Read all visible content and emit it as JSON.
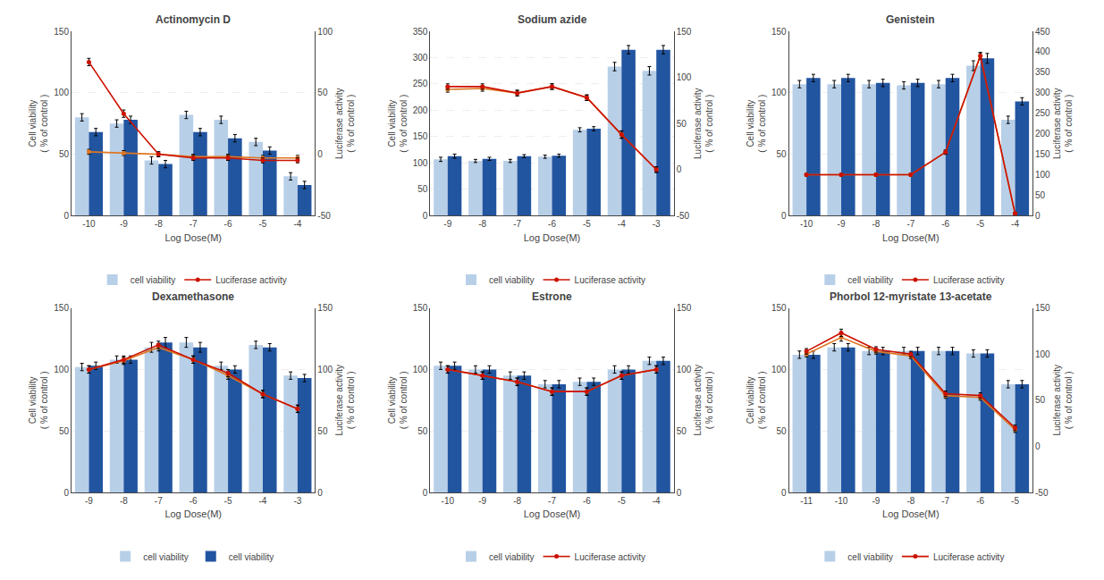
{
  "chart_data": [
    {
      "type": "bar",
      "title": "Actinomycin D",
      "categories": [
        "-10",
        "-9",
        "-8",
        "-7",
        "-6",
        "-5",
        "-4"
      ],
      "xlabel": "Log Dose(M)",
      "ylabel": "Cell viability\n( % of control )",
      "y2label": "Luciferase activity\n( % of control )",
      "ylim": [
        0,
        150
      ],
      "yticks": [
        0,
        50,
        100,
        150
      ],
      "y2lim": [
        -50,
        100
      ],
      "y2ticks": [
        -50,
        0,
        50,
        100
      ],
      "grid": true,
      "legend": "bottom",
      "series": [
        {
          "name": "cell viability",
          "type": "bar",
          "color": "#b8cfe8",
          "values": [
            80,
            75,
            45,
            82,
            78,
            60,
            32
          ],
          "errors": [
            3,
            3,
            3,
            3,
            3,
            3,
            3
          ]
        },
        {
          "type": "bar",
          "color": "#2255a0",
          "values": [
            68,
            78,
            42,
            68,
            63,
            53,
            25
          ],
          "errors": [
            3,
            3,
            3,
            3,
            3,
            3,
            3
          ]
        },
        {
          "type": "line",
          "axis": "y2",
          "color": "#dd7722",
          "marker": "circle",
          "line_style": "solid",
          "values": [
            2,
            1,
            0,
            -2,
            -2,
            -3,
            -3
          ],
          "errors": [
            2,
            2,
            2,
            2,
            2,
            2,
            2
          ]
        },
        {
          "name": "Luciferase activity",
          "type": "line",
          "axis": "y2",
          "color": "#cc1100",
          "marker": "circle",
          "line_style": "solid",
          "values": [
            75,
            33,
            0,
            -3,
            -3,
            -5,
            -5
          ],
          "errors": [
            3,
            3,
            2,
            2,
            2,
            2,
            2
          ]
        }
      ]
    },
    {
      "type": "bar",
      "title": "Sodium azide",
      "categories": [
        "-9",
        "-8",
        "-7",
        "-6",
        "-5",
        "-4",
        "-3"
      ],
      "xlabel": "Log Dose(M)",
      "ylabel": "Cell viability\n( % of control )",
      "y2label": "Luciferase activity\n( % of control )",
      "ylim": [
        0,
        350
      ],
      "yticks": [
        0,
        50,
        100,
        150,
        200,
        250,
        300,
        350
      ],
      "y2lim": [
        -50,
        150
      ],
      "y2ticks": [
        -50,
        0,
        50,
        100,
        150
      ],
      "grid": true,
      "legend": "bottom",
      "series": [
        {
          "name": "cell viability",
          "type": "bar",
          "color": "#b8cfe8",
          "values": [
            107,
            104,
            104,
            112,
            163,
            283,
            275
          ],
          "errors": [
            4,
            3,
            3,
            3,
            4,
            8,
            8
          ]
        },
        {
          "type": "bar",
          "color": "#2255a0",
          "values": [
            113,
            108,
            113,
            114,
            165,
            315,
            315
          ],
          "errors": [
            4,
            3,
            3,
            3,
            4,
            8,
            8
          ]
        },
        {
          "type": "line",
          "axis": "y2",
          "color": "#dd7722",
          "marker": "circle",
          "line_style": "solid",
          "values": [
            87,
            88,
            83,
            90,
            78,
            38,
            0
          ],
          "errors": [
            3,
            3,
            3,
            3,
            3,
            4,
            3
          ]
        },
        {
          "name": "Luciferase activity",
          "type": "line",
          "axis": "y2",
          "color": "#cc1100",
          "marker": "circle",
          "line_style": "solid",
          "values": [
            90,
            90,
            83,
            90,
            78,
            38,
            0
          ],
          "errors": [
            3,
            3,
            3,
            3,
            3,
            4,
            3
          ]
        }
      ]
    },
    {
      "type": "bar",
      "title": "Genistein",
      "categories": [
        "-10",
        "-9",
        "-8",
        "-7",
        "-6",
        "-5",
        "-4"
      ],
      "xlabel": "Log Dose(M)",
      "ylabel": "Cell viability\n( % of control )",
      "y2label": "Luciferase activity\n( % of control )",
      "ylim": [
        0,
        150
      ],
      "yticks": [
        0,
        50,
        100,
        150
      ],
      "y2lim": [
        0,
        450
      ],
      "y2ticks": [
        0,
        50,
        100,
        150,
        200,
        250,
        300,
        350,
        400,
        450
      ],
      "grid": true,
      "legend": "bottom",
      "series": [
        {
          "name": "cell viability",
          "type": "bar",
          "color": "#b8cfe8",
          "values": [
            107,
            107,
            107,
            106,
            107,
            122,
            78
          ],
          "errors": [
            3,
            3,
            3,
            3,
            3,
            4,
            3
          ]
        },
        {
          "type": "bar",
          "color": "#2255a0",
          "values": [
            112,
            112,
            108,
            108,
            112,
            128,
            93
          ],
          "errors": [
            3,
            3,
            3,
            3,
            3,
            4,
            3
          ]
        },
        {
          "type": "line",
          "axis": "y2",
          "color": "#dd7722",
          "marker": "circle",
          "line_style": "solid",
          "values": [
            100,
            100,
            100,
            100,
            155,
            390,
            5
          ],
          "errors": [
            3,
            3,
            3,
            3,
            5,
            8,
            3
          ]
        },
        {
          "name": "Luciferase activity",
          "type": "line",
          "axis": "y2",
          "color": "#cc1100",
          "marker": "circle",
          "line_style": "solid",
          "values": [
            100,
            100,
            100,
            100,
            155,
            390,
            5
          ],
          "errors": [
            3,
            3,
            3,
            3,
            5,
            8,
            3
          ]
        }
      ]
    },
    {
      "type": "bar",
      "title": "Dexamethasone",
      "categories": [
        "-9",
        "-8",
        "-7",
        "-6",
        "-5",
        "-4",
        "-3"
      ],
      "xlabel": "Log Dose(M)",
      "ylabel": "Cell viability\n( % of control )",
      "y2label": "Luciferase activity\n( % of control )",
      "ylim": [
        0,
        150
      ],
      "yticks": [
        0,
        50,
        100,
        150
      ],
      "y2lim": [
        0,
        150
      ],
      "y2ticks": [
        0,
        50,
        100,
        150
      ],
      "grid": true,
      "legend": "bottom",
      "series": [
        {
          "name": "cell viability",
          "type": "bar",
          "color": "#b8cfe8",
          "values": [
            102,
            108,
            118,
            122,
            103,
            120,
            95
          ],
          "errors": [
            3,
            3,
            4,
            4,
            3,
            3,
            3
          ]
        },
        {
          "name": "cell viability",
          "type": "bar",
          "color": "#2255a0",
          "values": [
            103,
            108,
            122,
            118,
            100,
            118,
            93
          ],
          "errors": [
            3,
            3,
            4,
            4,
            3,
            3,
            3
          ]
        },
        {
          "type": "line",
          "axis": "y2",
          "color": "#dd7722",
          "marker": "circle",
          "line_style": "solid",
          "values": [
            100,
            107,
            118,
            108,
            95,
            80,
            68
          ],
          "errors": [
            3,
            3,
            3,
            3,
            3,
            3,
            3
          ]
        },
        {
          "type": "line",
          "axis": "y2",
          "color": "#cc1100",
          "marker": "circle",
          "line_style": "solid",
          "values": [
            100,
            108,
            120,
            108,
            97,
            80,
            68
          ],
          "errors": [
            3,
            3,
            3,
            3,
            3,
            3,
            3
          ]
        }
      ]
    },
    {
      "type": "bar",
      "title": "Estrone",
      "categories": [
        "-10",
        "-9",
        "-8",
        "-7",
        "-6",
        "-5",
        "-4"
      ],
      "xlabel": "Log Dose(M)",
      "ylabel": "Cell viability\n( % of control )",
      "y2label": "Luciferase activity\n( % of control )",
      "ylim": [
        0,
        150
      ],
      "yticks": [
        0,
        50,
        100,
        150
      ],
      "y2lim": [
        0,
        150
      ],
      "y2ticks": [
        0,
        50,
        100,
        150
      ],
      "grid": true,
      "legend": "bottom",
      "series": [
        {
          "name": "cell viability",
          "type": "bar",
          "color": "#b8cfe8",
          "values": [
            103,
            100,
            95,
            88,
            90,
            100,
            107
          ],
          "errors": [
            3,
            3,
            3,
            3,
            3,
            3,
            3
          ]
        },
        {
          "type": "bar",
          "color": "#2255a0",
          "values": [
            103,
            100,
            95,
            88,
            90,
            100,
            107
          ],
          "errors": [
            3,
            3,
            3,
            3,
            3,
            3,
            3
          ]
        },
        {
          "type": "line",
          "axis": "y2",
          "color": "#dd7722",
          "marker": "circle",
          "line_style": "solid",
          "values": [
            100,
            95,
            90,
            82,
            82,
            95,
            100
          ],
          "errors": [
            3,
            3,
            3,
            3,
            3,
            3,
            3
          ]
        },
        {
          "name": "Luciferase activity",
          "type": "line",
          "axis": "y2",
          "color": "#cc1100",
          "marker": "circle",
          "line_style": "solid",
          "values": [
            100,
            95,
            90,
            82,
            82,
            95,
            100
          ],
          "errors": [
            3,
            3,
            3,
            3,
            3,
            3,
            3
          ]
        }
      ]
    },
    {
      "type": "bar",
      "title": "Phorbol 12-myristate 13-acetate",
      "categories": [
        "-11",
        "-10",
        "-9",
        "-8",
        "-7",
        "-6",
        "-5"
      ],
      "xlabel": "Log Dose(M)",
      "ylabel": "Cell viability\n( % of control )",
      "y2label": "Luciferase activity\n( % of control )",
      "ylim": [
        0,
        150
      ],
      "yticks": [
        0,
        50,
        100,
        150
      ],
      "y2lim": [
        -50,
        150
      ],
      "y2ticks": [
        -50,
        0,
        50,
        100,
        150
      ],
      "grid": true,
      "legend": "bottom",
      "series": [
        {
          "name": "cell viability",
          "type": "bar",
          "color": "#b8cfe8",
          "values": [
            112,
            118,
            115,
            115,
            115,
            113,
            88
          ],
          "errors": [
            3,
            3,
            3,
            3,
            3,
            3,
            3
          ]
        },
        {
          "type": "bar",
          "color": "#2255a0",
          "values": [
            112,
            118,
            115,
            115,
            115,
            113,
            88
          ],
          "errors": [
            3,
            3,
            3,
            3,
            3,
            3,
            3
          ]
        },
        {
          "type": "line",
          "axis": "y2",
          "color": "#dd7722",
          "marker": "circle",
          "line_style": "solid",
          "values": [
            100,
            118,
            103,
            98,
            55,
            53,
            18
          ],
          "errors": [
            3,
            4,
            3,
            3,
            3,
            3,
            3
          ]
        },
        {
          "name": "Luciferase activity",
          "type": "line",
          "axis": "y2",
          "color": "#cc1100",
          "marker": "circle",
          "line_style": "solid",
          "values": [
            103,
            123,
            105,
            100,
            57,
            55,
            20
          ],
          "errors": [
            3,
            4,
            3,
            3,
            3,
            3,
            3
          ]
        }
      ]
    }
  ]
}
